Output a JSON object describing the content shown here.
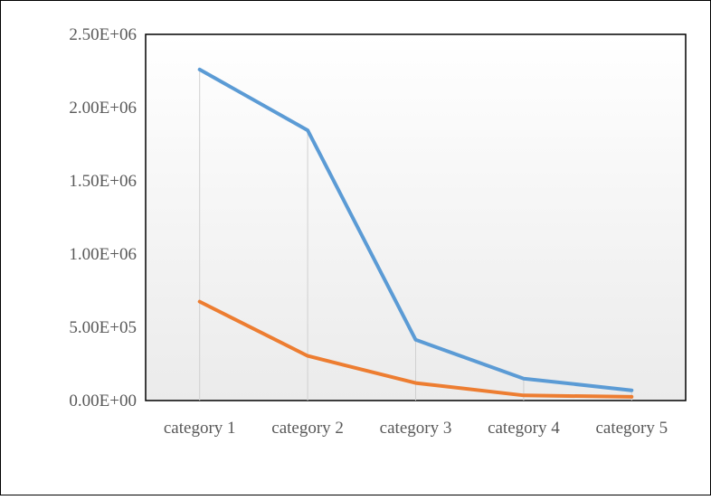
{
  "chart_data": {
    "type": "line",
    "title": "",
    "xlabel": "",
    "ylabel": "",
    "categories": [
      "category 1",
      "category 2",
      "category 3",
      "category 4",
      "category 5"
    ],
    "series": [
      {
        "values": [
          2260000,
          1845000,
          415000,
          150000,
          70000
        ],
        "color": "#5B9BD5"
      },
      {
        "values": [
          675000,
          305000,
          120000,
          35000,
          25000
        ],
        "color": "#ED7D31"
      }
    ],
    "ylim": [
      0,
      2500000
    ],
    "yticks": [
      0,
      500000,
      1000000,
      1500000,
      2000000,
      2500000
    ],
    "ytick_labels": [
      "0.00E+00",
      "5.00E+05",
      "1.00E+06",
      "1.50E+06",
      "2.00E+06",
      "2.50E+06"
    ],
    "drop_lines": true,
    "plot_area_fill": "gradient white to light gray",
    "legend": "none"
  }
}
